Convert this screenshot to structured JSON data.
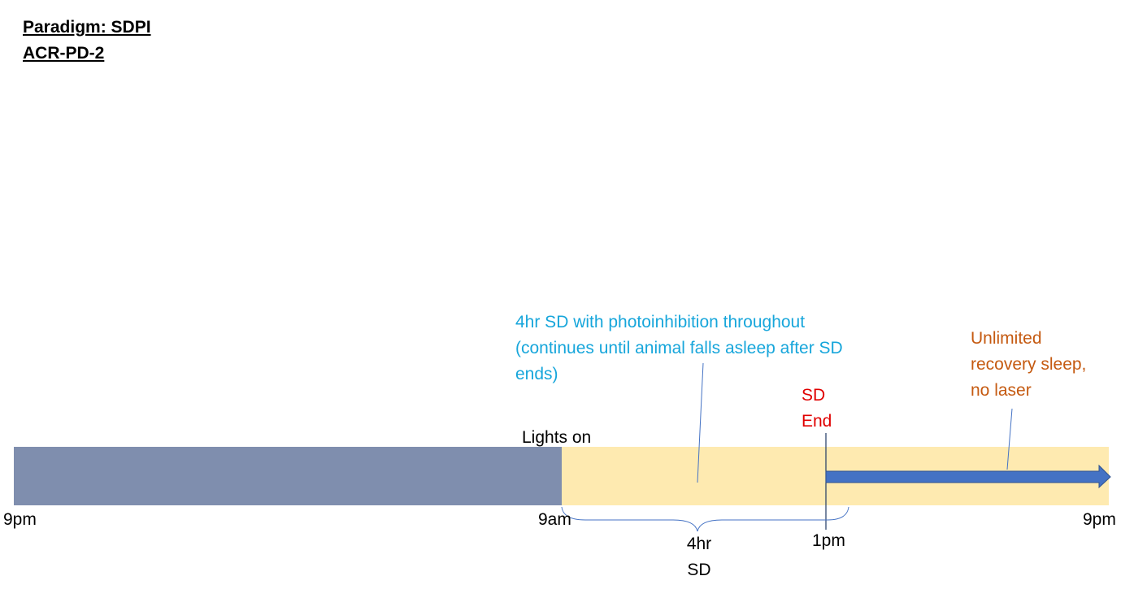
{
  "title": {
    "line1": "Paradigm: SDPI",
    "line2": "ACR-PD-2"
  },
  "annotations": {
    "sd_description": {
      "line1": "4hr SD with photoinhibition throughout",
      "line2": "(continues until animal falls asleep after SD",
      "line3": "ends)"
    },
    "sd_end": {
      "line1": "SD",
      "line2": "End"
    },
    "recovery": {
      "line1": "Unlimited",
      "line2": "recovery sleep,",
      "line3": "no laser"
    },
    "lights_on": "Lights on",
    "brace_label": {
      "line1": "4hr",
      "line2": "SD"
    }
  },
  "timeline": {
    "start": "9pm",
    "lights_on_time": "9am",
    "sd_end_time": "1pm",
    "end": "9pm"
  },
  "colors": {
    "dark_period": "#7f8eae",
    "light_period": "#feeab0",
    "arrow": "#4472c4",
    "sd_text": "#17a6db",
    "sd_end_text": "#e00000",
    "recovery_text": "#c55a11"
  }
}
